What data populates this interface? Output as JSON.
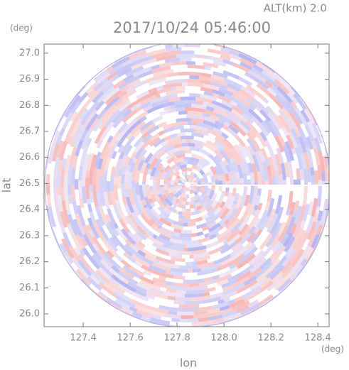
{
  "chart_data": {
    "type": "radar-ppi",
    "title": "2017/10/24 05:46:00",
    "subtitle": "ALT(km) 2.0",
    "y_unit": "(deg)",
    "x_unit": "(deg)",
    "xlabel": "lon",
    "ylabel": "lat",
    "xlim": [
      127.233,
      128.448
    ],
    "ylim": [
      25.951,
      27.035
    ],
    "xticks": [
      127.4,
      127.6,
      127.8,
      {
        "value": 128.0,
        "label": "128.0"
      },
      128.2,
      128.4
    ],
    "yticks": [
      {
        "value": 26.0,
        "label": "26.0"
      },
      26.1,
      26.2,
      26.3,
      26.4,
      26.5,
      26.6,
      26.7,
      26.8,
      26.9,
      {
        "value": 27.0,
        "label": "27.0"
      }
    ]
  }
}
